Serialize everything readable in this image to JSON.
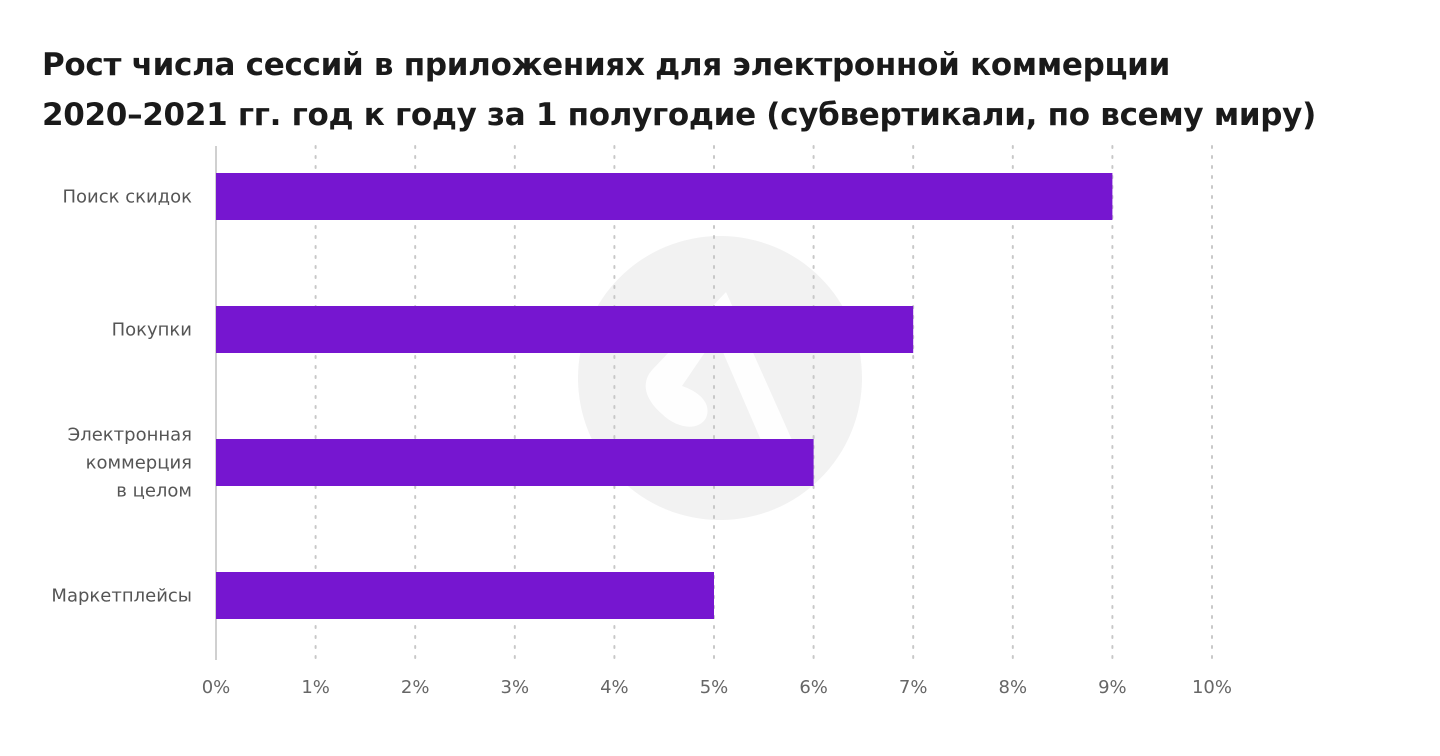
{
  "title": {
    "line1": "Рост числа сессий в приложениях для электронной коммерции",
    "line2": "2020–2021 гг. год к году за 1 полугодие (субвертикали, по всему миру)"
  },
  "chart_data": {
    "type": "bar",
    "orientation": "horizontal",
    "title": "Рост числа сессий в приложениях для электронной коммерции 2020–2021 гг. год к году за 1 полугодие (субвертикали, по всему миру)",
    "categories": [
      [
        "Поиск скидок"
      ],
      [
        "Покупки"
      ],
      [
        "Электронная",
        "коммерция",
        "в целом"
      ],
      [
        "Маркетплейсы"
      ]
    ],
    "values": [
      9,
      7,
      6,
      5
    ],
    "xlim": [
      0,
      10
    ],
    "x_ticks": [
      "0%",
      "1%",
      "2%",
      "3%",
      "4%",
      "5%",
      "6%",
      "7%",
      "8%",
      "9%",
      "10%"
    ],
    "xlabel": "",
    "ylabel": "",
    "grid": "vertical dotted",
    "legend": "none",
    "colors": {
      "bar": "#7616d0",
      "grid": "#c8c8c8",
      "axis": "#d0d0d0",
      "watermark": "#f2f2f2"
    }
  }
}
